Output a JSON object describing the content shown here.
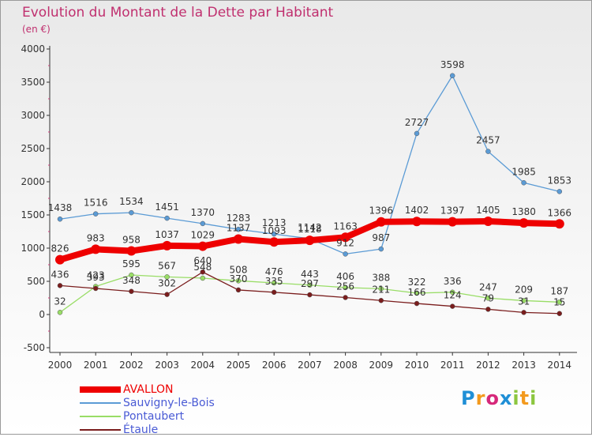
{
  "title": "Evolution du Montant de la Dette par Habitant",
  "unit": "(en €)",
  "colors": {
    "title": "#c0306f",
    "axis": "#333333",
    "grid": "#b0b0b0",
    "label": "#333333",
    "background_top": "#e9e9e9",
    "background_bottom": "#ffffff"
  },
  "logo": {
    "text": "Proxiti",
    "letters": [
      {
        "char": "P",
        "color": "#1f8fd6"
      },
      {
        "char": "r",
        "color": "#f39a1e"
      },
      {
        "char": "o",
        "color": "#d6287a"
      },
      {
        "char": "x",
        "color": "#1f8fd6"
      },
      {
        "char": "i",
        "color": "#8cc63f"
      },
      {
        "char": "t",
        "color": "#f39a1e"
      },
      {
        "char": "i",
        "color": "#8cc63f"
      }
    ]
  },
  "chart_data": {
    "type": "line",
    "x": [
      "2000",
      "2001",
      "2002",
      "2003",
      "2004",
      "2005",
      "2006",
      "2007",
      "2008",
      "2009",
      "2010",
      "2011",
      "2012",
      "2013",
      "2014"
    ],
    "ylim": [
      -500,
      4000
    ],
    "yticks": [
      -500,
      0,
      500,
      1000,
      1500,
      2000,
      2500,
      3000,
      3500,
      4000
    ],
    "grid": false,
    "legend_position": "bottom-left",
    "series": [
      {
        "name": "AVALLON",
        "color": "#ee0000",
        "bold": true,
        "values": [
          826,
          983,
          958,
          1037,
          1029,
          1137,
          1093,
          1118,
          1163,
          1396,
          1402,
          1397,
          1405,
          1380,
          1366
        ],
        "labels": [
          "826",
          "983",
          "958",
          "1037",
          "1029",
          "1137",
          "1093",
          "1118",
          "1163",
          "1396",
          "1402",
          "1397",
          "1405",
          "1380",
          "1366"
        ]
      },
      {
        "name": "Sauvigny-le-Bois",
        "color": "#5b9bd5",
        "values": [
          1438,
          1516,
          1534,
          1451,
          1370,
          1283,
          1213,
          1142,
          912,
          987,
          2727,
          3598,
          2457,
          1985,
          1853
        ],
        "labels": [
          "1438",
          "1516",
          "1534",
          "1451",
          "1370",
          "1283",
          "1213",
          "1142",
          "912",
          "987",
          "2727",
          "3598",
          "2457",
          "1985",
          "1853"
        ]
      },
      {
        "name": "Pontaubert",
        "color": "#99dd66",
        "values": [
          32,
          423,
          595,
          567,
          548,
          508,
          476,
          443,
          406,
          388,
          322,
          336,
          247,
          209,
          187
        ],
        "labels": [
          "32",
          "423",
          "595",
          "567",
          "548",
          "508",
          "476",
          "443",
          "406",
          "388",
          "322",
          "336",
          "247",
          "209",
          "187"
        ]
      },
      {
        "name": "Étaule",
        "color": "#7a1d1d",
        "values": [
          436,
          393,
          348,
          302,
          640,
          370,
          335,
          297,
          256,
          211,
          166,
          124,
          79,
          31,
          15
        ],
        "labels": [
          "436",
          "393",
          "348",
          "302",
          "640",
          "370",
          "335",
          "297",
          "256",
          "211",
          "166",
          "124",
          "79",
          "31",
          "15"
        ]
      }
    ]
  }
}
